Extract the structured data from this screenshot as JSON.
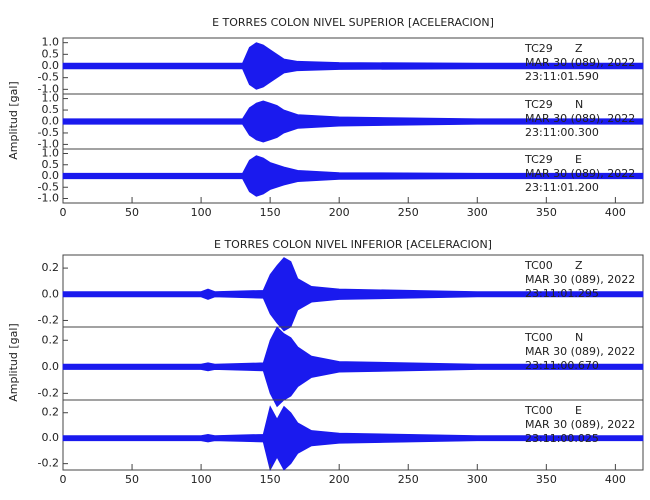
{
  "chart_data": [
    {
      "type": "seismogram",
      "title": "E TORRES COLON NIVEL SUPERIOR [ACELERACION]",
      "ylabel": "Amplitud [gal]",
      "xlim": [
        0,
        420
      ],
      "xticks": [
        0,
        50,
        100,
        150,
        200,
        250,
        300,
        350,
        400
      ],
      "color": "#1a1aee",
      "traces": [
        {
          "station": "TC29",
          "component": "Z",
          "date": "MAR 30 (089), 2022",
          "time": "23:11:01.590",
          "ylim": [
            -1.2,
            1.2
          ],
          "yticks": [
            {
              "value": -1,
              "label": "-1.0"
            },
            {
              "value": -0.5,
              "label": "-0.5"
            },
            {
              "value": 0,
              "label": "0.0"
            },
            {
              "value": 0.5,
              "label": "0.5"
            },
            {
              "value": 1,
              "label": "1.0"
            }
          ],
          "x": [
            0,
            130,
            135,
            140,
            145,
            150,
            155,
            160,
            170,
            200,
            300,
            420
          ],
          "values": [
            0.12,
            0.12,
            0.8,
            1.0,
            0.9,
            0.7,
            0.5,
            0.3,
            0.2,
            0.15,
            0.12,
            0.12
          ]
        },
        {
          "station": "TC29",
          "component": "N",
          "date": "MAR 30 (089), 2022",
          "time": "23:11:00.300",
          "ylim": [
            -1.2,
            1.2
          ],
          "yticks": [
            {
              "value": -1,
              "label": "-1.0"
            },
            {
              "value": -0.5,
              "label": "-0.5"
            },
            {
              "value": 0,
              "label": "0.0"
            },
            {
              "value": 0.5,
              "label": "0.5"
            },
            {
              "value": 1,
              "label": "1.0"
            }
          ],
          "x": [
            0,
            130,
            135,
            140,
            145,
            150,
            155,
            160,
            170,
            200,
            300,
            420
          ],
          "values": [
            0.12,
            0.12,
            0.6,
            0.8,
            0.9,
            0.8,
            0.7,
            0.5,
            0.3,
            0.2,
            0.12,
            0.12
          ]
        },
        {
          "station": "TC29",
          "component": "E",
          "date": "MAR 30 (089), 2022",
          "time": "23:11:01.200",
          "ylim": [
            -1.2,
            1.2
          ],
          "yticks": [
            {
              "value": -1,
              "label": "-1.0"
            },
            {
              "value": -0.5,
              "label": "-0.5"
            },
            {
              "value": 0,
              "label": "0.0"
            },
            {
              "value": 0.5,
              "label": "0.5"
            },
            {
              "value": 1,
              "label": "1.0"
            }
          ],
          "x": [
            0,
            130,
            135,
            140,
            145,
            150,
            155,
            160,
            170,
            200,
            300,
            420
          ],
          "values": [
            0.12,
            0.12,
            0.7,
            0.9,
            0.8,
            0.6,
            0.5,
            0.4,
            0.25,
            0.15,
            0.12,
            0.12
          ]
        }
      ]
    },
    {
      "type": "seismogram",
      "title": "E TORRES COLON NIVEL INFERIOR [ACELERACION]",
      "ylabel": "Amplitud [gal]",
      "xlim": [
        0,
        420
      ],
      "xticks": [
        0,
        50,
        100,
        150,
        200,
        250,
        300,
        350,
        400
      ],
      "color": "#1a1aee",
      "traces": [
        {
          "station": "TC00",
          "component": "Z",
          "date": "MAR 30 (089), 2022",
          "time": "23:11:01.295",
          "ylim": [
            -0.25,
            0.3
          ],
          "yticks": [
            -0.2,
            {
              "value": 0,
              "label": "0.0"
            },
            0.2
          ],
          "x": [
            0,
            100,
            105,
            110,
            145,
            150,
            155,
            160,
            165,
            170,
            180,
            200,
            300,
            420
          ],
          "values": [
            0.02,
            0.02,
            0.04,
            0.02,
            0.03,
            0.15,
            0.22,
            0.28,
            0.25,
            0.12,
            0.06,
            0.04,
            0.02,
            0.02
          ]
        },
        {
          "station": "TC00",
          "component": "N",
          "date": "MAR 30 (089), 2022",
          "time": "23:11:00.670",
          "ylim": [
            -0.25,
            0.3
          ],
          "yticks": [
            -0.2,
            {
              "value": 0,
              "label": "0.0"
            },
            0.2
          ],
          "x": [
            0,
            100,
            105,
            110,
            145,
            150,
            155,
            160,
            165,
            170,
            180,
            200,
            300,
            420
          ],
          "values": [
            0.02,
            0.02,
            0.03,
            0.02,
            0.03,
            0.2,
            0.3,
            0.25,
            0.22,
            0.15,
            0.08,
            0.04,
            0.02,
            0.02
          ]
        },
        {
          "station": "TC00",
          "component": "E",
          "date": "MAR 30 (089), 2022",
          "time": "23:11:00.025",
          "ylim": [
            -0.25,
            0.3
          ],
          "yticks": [
            -0.2,
            {
              "value": 0,
              "label": "0.0"
            },
            0.2
          ],
          "x": [
            0,
            100,
            105,
            110,
            145,
            150,
            155,
            160,
            165,
            170,
            180,
            200,
            300,
            420
          ],
          "values": [
            0.02,
            0.02,
            0.03,
            0.02,
            0.03,
            0.25,
            0.15,
            0.25,
            0.2,
            0.12,
            0.06,
            0.04,
            0.02,
            0.02
          ]
        }
      ]
    }
  ]
}
